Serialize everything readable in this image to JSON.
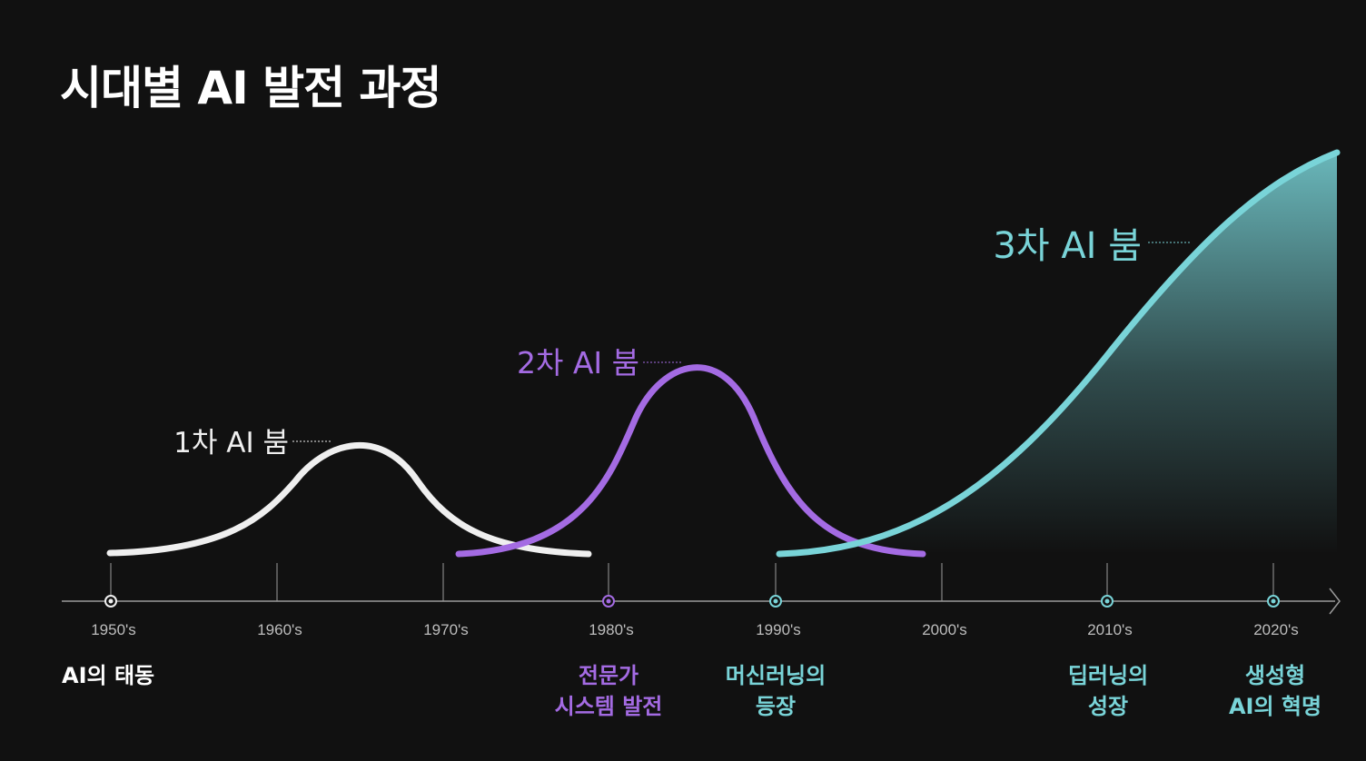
{
  "title": "시대별 AI 발전 과정",
  "colors": {
    "background": "#111111",
    "boom1": "#efefef",
    "boom2": "#a46be3",
    "boom3": "#79d4d8",
    "axis": "#9a9a9a"
  },
  "timeline": {
    "ticks": [
      "1950's",
      "1960's",
      "1970's",
      "1980's",
      "1990's",
      "2000's",
      "2010's",
      "2020's"
    ],
    "origin_label": "AI의 태동"
  },
  "booms": [
    {
      "label": "1차 AI 붐",
      "color": "#efefef"
    },
    {
      "label": "2차 AI 붐",
      "color": "#a46be3"
    },
    {
      "label": "3차 AI 붐",
      "color": "#79d4d8"
    }
  ],
  "milestones": [
    {
      "lines": [
        "전문가",
        "시스템 발전"
      ],
      "color": "#a46be3"
    },
    {
      "lines": [
        "머신러닝의",
        "등장"
      ],
      "color": "#79d4d8"
    },
    {
      "lines": [
        "딥러닝의",
        "성장"
      ],
      "color": "#79d4d8"
    },
    {
      "lines": [
        "생성형",
        "AI의 혁명"
      ],
      "color": "#79d4d8"
    }
  ]
}
